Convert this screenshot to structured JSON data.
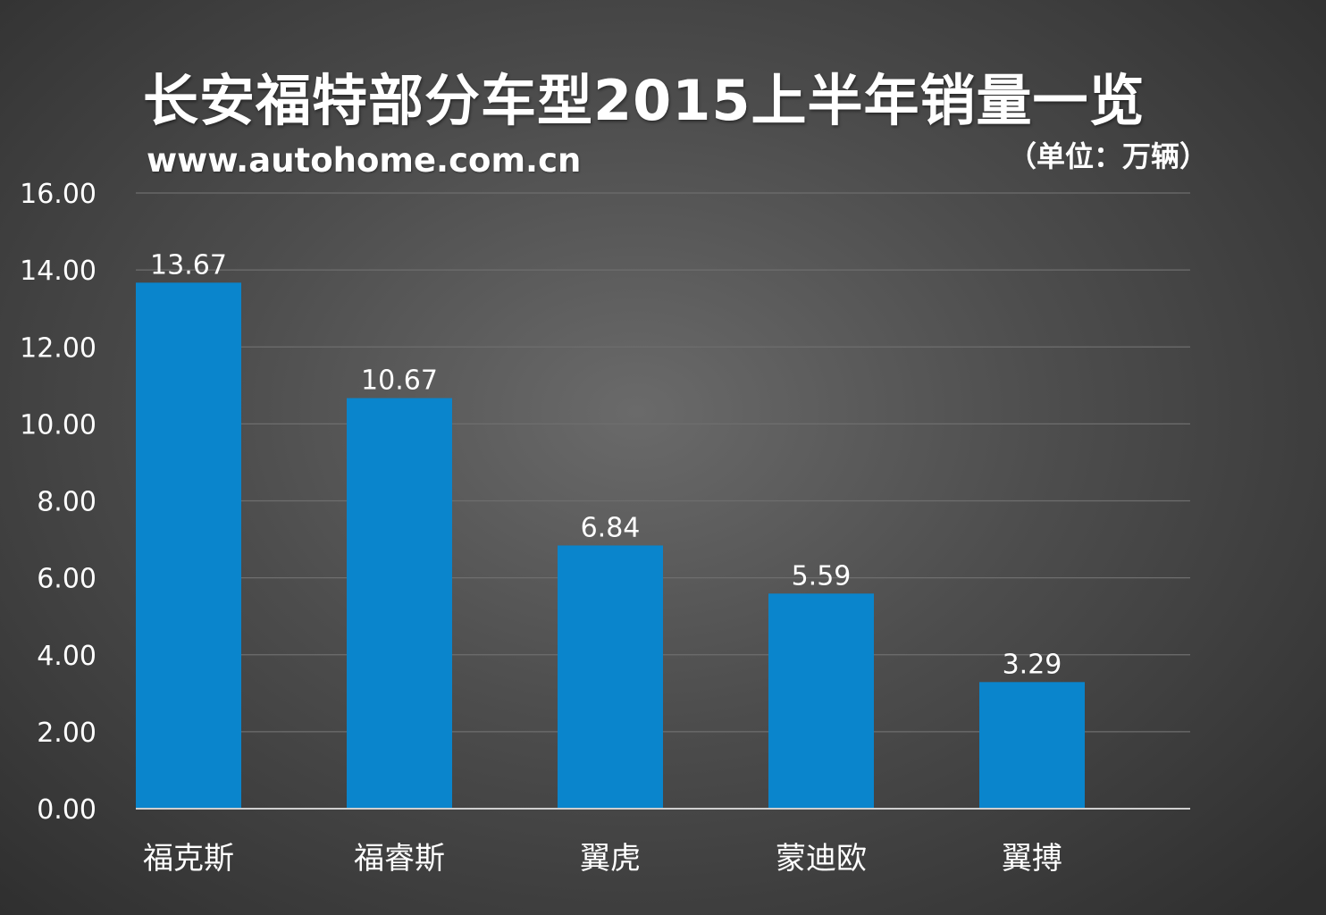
{
  "header": {
    "title": "长安福特部分车型2015上半年销量一览",
    "website": "www.autohome.com.cn",
    "unit": "（单位：万辆）"
  },
  "colors": {
    "bar": "#0a85cc",
    "gridline": "#6e6e6e",
    "axis": "#cfcfcf",
    "text": "#ffffff"
  },
  "chart_data": {
    "type": "bar",
    "title": "长安福特部分车型2015上半年销量一览",
    "categories": [
      "福克斯",
      "福睿斯",
      "翼虎",
      "蒙迪欧",
      "翼搏"
    ],
    "values": [
      13.67,
      10.67,
      6.84,
      5.59,
      3.29
    ],
    "data_labels": [
      "13.67",
      "10.67",
      "6.84",
      "5.59",
      "3.29"
    ],
    "yticks": [
      "0.00",
      "2.00",
      "4.00",
      "6.00",
      "8.00",
      "10.00",
      "12.00",
      "14.00",
      "16.00"
    ],
    "ylim": [
      0,
      16
    ],
    "grid": true,
    "legend": "none",
    "xlabel": "",
    "ylabel": ""
  }
}
